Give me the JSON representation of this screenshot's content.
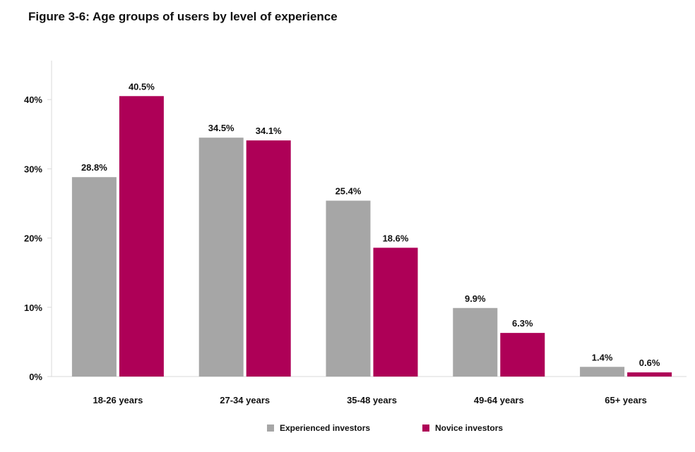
{
  "chart_data": {
    "type": "bar",
    "title": "Figure 3-6: Age groups of users by level of experience",
    "xlabel": "",
    "ylabel": "",
    "categories": [
      "18-26 years",
      "27-34 years",
      "35-48 years",
      "49-64 years",
      "65+ years"
    ],
    "series": [
      {
        "name": "Experienced investors",
        "color": "#a6a6a6",
        "values": [
          28.8,
          34.5,
          25.4,
          9.9,
          1.4
        ],
        "labels": [
          "28.8%",
          "34.5%",
          "25.4%",
          "9.9%",
          "1.4%"
        ]
      },
      {
        "name": "Novice investors",
        "color": "#ae0057",
        "values": [
          40.5,
          34.1,
          18.6,
          6.3,
          0.6
        ],
        "labels": [
          "40.5%",
          "34.1%",
          "18.6%",
          "6.3%",
          "0.6%"
        ]
      }
    ],
    "ylim": [
      0,
      45
    ],
    "yticks": [
      0,
      10,
      20,
      30,
      40
    ],
    "ytick_labels": [
      "0%",
      "10%",
      "20%",
      "30%",
      "40%"
    ],
    "grid": false,
    "legend_position": "bottom"
  }
}
